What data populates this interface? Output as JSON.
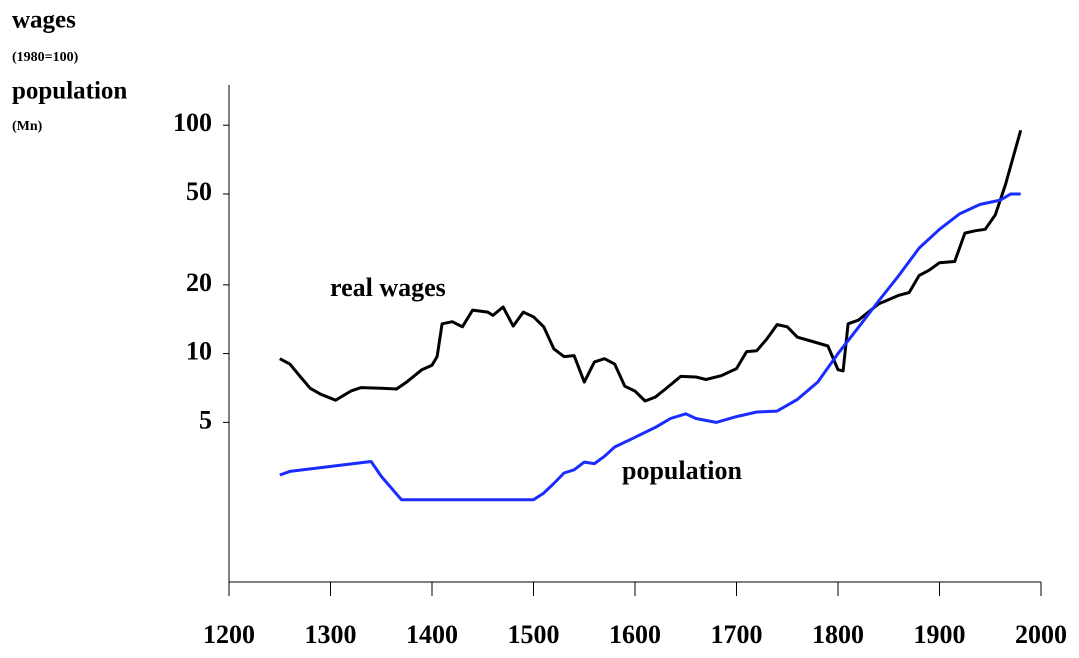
{
  "chart_data": {
    "type": "line",
    "ylabel": [
      "wages",
      "(1980=100)",
      "population",
      "(Mn)"
    ],
    "annotations": [
      "real wages",
      "population"
    ],
    "log_y": true,
    "xlim": [
      1200,
      2000
    ],
    "xticks": [
      1200,
      1300,
      1400,
      1500,
      1600,
      1700,
      1800,
      1900,
      2000
    ],
    "ylim": [
      1,
      150
    ],
    "yticks": [
      5,
      10,
      20,
      50,
      100
    ],
    "series": [
      {
        "name": "real wages",
        "color": "#000000",
        "x": [
          1250,
          1260,
          1270,
          1280,
          1290,
          1305,
          1320,
          1330,
          1350,
          1365,
          1375,
          1390,
          1400,
          1405,
          1410,
          1420,
          1430,
          1440,
          1455,
          1460,
          1470,
          1480,
          1490,
          1500,
          1510,
          1520,
          1530,
          1540,
          1550,
          1560,
          1570,
          1580,
          1590,
          1600,
          1610,
          1620,
          1630,
          1645,
          1660,
          1670,
          1685,
          1700,
          1710,
          1720,
          1730,
          1740,
          1750,
          1760,
          1775,
          1790,
          1800,
          1805,
          1810,
          1820,
          1840,
          1860,
          1870,
          1880,
          1890,
          1900,
          1915,
          1925,
          1935,
          1945,
          1955,
          1965,
          1980
        ],
        "values": [
          9.5,
          9.0,
          7.95,
          7.05,
          6.65,
          6.25,
          6.85,
          7.1,
          7.05,
          7.0,
          7.5,
          8.5,
          8.9,
          9.7,
          13.5,
          13.8,
          13.1,
          15.5,
          15.2,
          14.7,
          16,
          13.2,
          15.2,
          14.5,
          13.1,
          10.5,
          9.7,
          9.8,
          7.5,
          9.2,
          9.5,
          9.0,
          7.2,
          6.85,
          6.2,
          6.45,
          7.0,
          7.95,
          7.9,
          7.7,
          8.0,
          8.6,
          10.2,
          10.3,
          11.6,
          13.4,
          13.1,
          11.8,
          11.3,
          10.8,
          8.5,
          8.4,
          13.5,
          14.0,
          16.5,
          18,
          18.5,
          22,
          23.2,
          25,
          25.3,
          33.7,
          34.5,
          35,
          40.5,
          55,
          95
        ]
      },
      {
        "name": "population",
        "color": "#1a2cff",
        "x": [
          1250,
          1260,
          1340,
          1350,
          1370,
          1500,
          1510,
          1520,
          1530,
          1540,
          1550,
          1560,
          1570,
          1580,
          1600,
          1620,
          1635,
          1650,
          1660,
          1680,
          1700,
          1720,
          1740,
          1760,
          1780,
          1800,
          1820,
          1840,
          1860,
          1880,
          1900,
          1920,
          1940,
          1960,
          1970,
          1980
        ],
        "values": [
          2.94,
          3.05,
          3.37,
          2.9,
          2.29,
          2.29,
          2.45,
          2.7,
          3.0,
          3.1,
          3.35,
          3.3,
          3.55,
          3.9,
          4.3,
          4.75,
          5.2,
          5.45,
          5.2,
          5.0,
          5.3,
          5.55,
          5.6,
          6.3,
          7.5,
          10,
          13,
          17,
          22,
          29,
          35,
          41,
          45,
          47,
          50,
          50
        ]
      }
    ]
  }
}
